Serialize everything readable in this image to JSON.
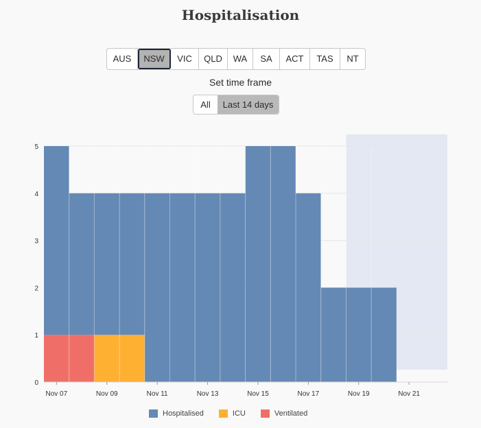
{
  "page": {
    "title": "Hospitalisation"
  },
  "regions": {
    "items": [
      "AUS",
      "NSW",
      "VIC",
      "QLD",
      "WA",
      "SA",
      "ACT",
      "TAS",
      "NT"
    ],
    "selected": "NSW"
  },
  "timeframe": {
    "label": "Set time frame",
    "options": [
      "All",
      "Last 14 days"
    ],
    "selected": "Last 14 days"
  },
  "legend": [
    {
      "name": "Hospitalised",
      "color": "#6589b5"
    },
    {
      "name": "ICU",
      "color": "#fdb032"
    },
    {
      "name": "Ventilated",
      "color": "#ef6f68"
    }
  ],
  "chart_data": {
    "type": "bar",
    "stacked": true,
    "x": [
      "Nov 07",
      "Nov 08",
      "Nov 09",
      "Nov 10",
      "Nov 11",
      "Nov 12",
      "Nov 13",
      "Nov 14",
      "Nov 15",
      "Nov 16",
      "Nov 17",
      "Nov 18",
      "Nov 19",
      "Nov 20"
    ],
    "x_tick_labels": [
      "Nov 07",
      "Nov 09",
      "Nov 11",
      "Nov 13",
      "Nov 15",
      "Nov 17",
      "Nov 19",
      "Nov 21"
    ],
    "series": [
      {
        "name": "Hospitalised",
        "color": "#6589b5",
        "values": [
          4,
          3,
          3,
          3,
          4,
          4,
          4,
          4,
          5,
          5,
          4,
          2,
          2,
          2
        ]
      },
      {
        "name": "ICU",
        "color": "#fdb032",
        "values": [
          0,
          0,
          1,
          1,
          0,
          0,
          0,
          0,
          0,
          0,
          0,
          0,
          0,
          0
        ]
      },
      {
        "name": "Ventilated",
        "color": "#ef6f68",
        "values": [
          1,
          1,
          0,
          0,
          0,
          0,
          0,
          0,
          0,
          0,
          0,
          0,
          0,
          0
        ]
      }
    ],
    "y_ticks": [
      0,
      1,
      2,
      3,
      4,
      5
    ],
    "ylim": [
      0,
      5
    ],
    "shaded_region": {
      "from": "Nov 19",
      "to": "Nov 21",
      "color": "#e4e8f2"
    },
    "legend_position": "bottom"
  }
}
